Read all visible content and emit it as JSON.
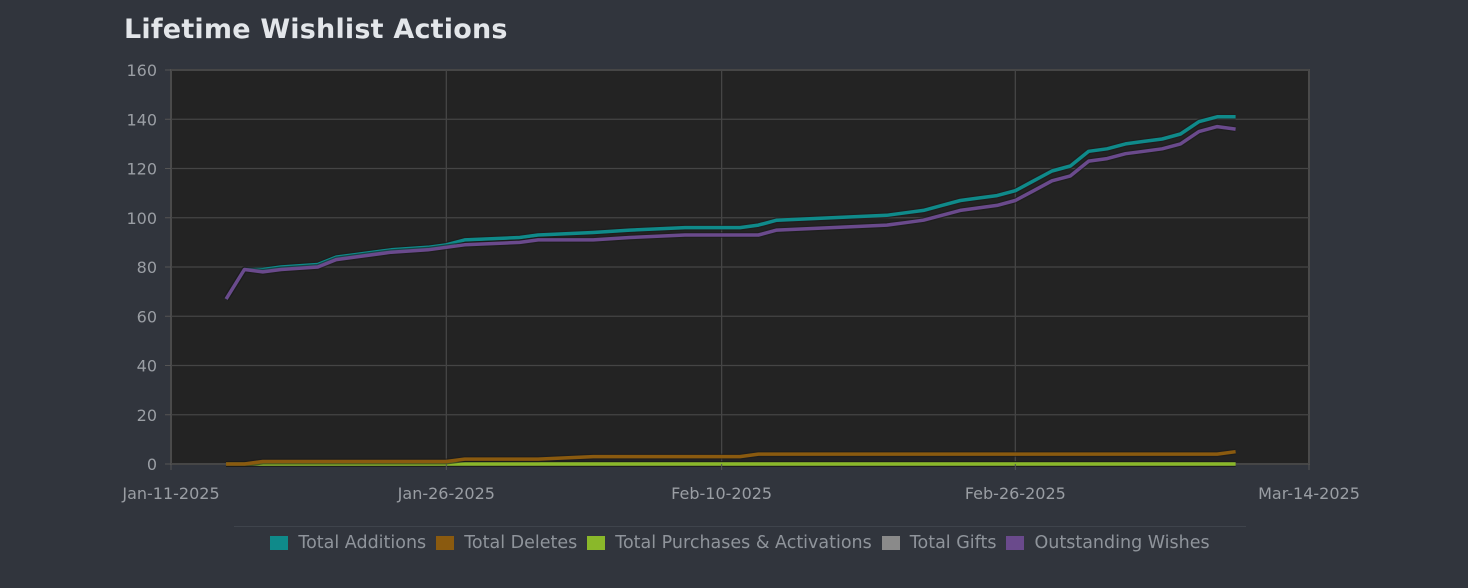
{
  "title": "Lifetime Wishlist Actions",
  "colors": {
    "background": "#31353d",
    "plot_background": "#232323",
    "grid": "#454545",
    "additions": "#0f8a8a",
    "deletes": "#8a5a0f",
    "purchases": "#8ab82a",
    "gifts": "#8a8a8a",
    "outstanding": "#6a4a8c"
  },
  "legend": [
    {
      "label": "Total Additions",
      "color": "#0f8a8a"
    },
    {
      "label": "Total Deletes",
      "color": "#8a5a0f"
    },
    {
      "label": "Total Purchases & Activations",
      "color": "#8ab82a"
    },
    {
      "label": "Total Gifts",
      "color": "#8a8a8a"
    },
    {
      "label": "Outstanding Wishes",
      "color": "#6a4a8c"
    }
  ],
  "chart_data": {
    "type": "line",
    "title": "Lifetime Wishlist Actions",
    "xlabel": "",
    "ylabel": "",
    "ylim": [
      0,
      160
    ],
    "yticks": [
      0,
      20,
      40,
      60,
      80,
      100,
      120,
      140,
      160
    ],
    "xlim": [
      "2025-01-11",
      "2025-03-14"
    ],
    "xticks": [
      "Jan-11-2025",
      "Jan-26-2025",
      "Feb-10-2025",
      "Feb-26-2025",
      "Mar-14-2025"
    ],
    "xtick_dates": [
      "2025-01-11",
      "2025-01-26",
      "2025-02-10",
      "2025-02-26",
      "2025-03-14"
    ],
    "grid": true,
    "legend_position": "bottom",
    "x": [
      "2025-01-14",
      "2025-01-15",
      "2025-01-16",
      "2025-01-17",
      "2025-01-19",
      "2025-01-20",
      "2025-01-21",
      "2025-01-23",
      "2025-01-25",
      "2025-01-26",
      "2025-01-27",
      "2025-01-30",
      "2025-01-31",
      "2025-02-03",
      "2025-02-05",
      "2025-02-08",
      "2025-02-11",
      "2025-02-12",
      "2025-02-13",
      "2025-02-16",
      "2025-02-19",
      "2025-02-20",
      "2025-02-21",
      "2025-02-22",
      "2025-02-23",
      "2025-02-24",
      "2025-02-25",
      "2025-02-26",
      "2025-02-27",
      "2025-02-28",
      "2025-03-01",
      "2025-03-02",
      "2025-03-03",
      "2025-03-04",
      "2025-03-05",
      "2025-03-06",
      "2025-03-07",
      "2025-03-08",
      "2025-03-09",
      "2025-03-10"
    ],
    "series": [
      {
        "name": "Total Additions",
        "color": "#0f8a8a",
        "values": [
          67,
          79,
          79,
          80,
          81,
          84,
          85,
          87,
          88,
          89,
          91,
          92,
          93,
          94,
          95,
          96,
          96,
          97,
          99,
          100,
          101,
          102,
          103,
          105,
          107,
          108,
          109,
          111,
          115,
          119,
          121,
          127,
          128,
          130,
          131,
          132,
          134,
          139,
          141,
          141
        ]
      },
      {
        "name": "Total Deletes",
        "color": "#8a5a0f",
        "values": [
          0,
          0,
          1,
          1,
          1,
          1,
          1,
          1,
          1,
          1,
          2,
          2,
          2,
          3,
          3,
          3,
          3,
          4,
          4,
          4,
          4,
          4,
          4,
          4,
          4,
          4,
          4,
          4,
          4,
          4,
          4,
          4,
          4,
          4,
          4,
          4,
          4,
          4,
          4,
          5
        ]
      },
      {
        "name": "Total Purchases & Activations",
        "color": "#8ab82a",
        "values": [
          0,
          0,
          0,
          0,
          0,
          0,
          0,
          0,
          0,
          0,
          0,
          0,
          0,
          0,
          0,
          0,
          0,
          0,
          0,
          0,
          0,
          0,
          0,
          0,
          0,
          0,
          0,
          0,
          0,
          0,
          0,
          0,
          0,
          0,
          0,
          0,
          0,
          0,
          0,
          0
        ]
      },
      {
        "name": "Total Gifts",
        "color": "#8a8a8a",
        "values": [
          0,
          0,
          0,
          0,
          0,
          0,
          0,
          0,
          0,
          0,
          0,
          0,
          0,
          0,
          0,
          0,
          0,
          0,
          0,
          0,
          0,
          0,
          0,
          0,
          0,
          0,
          0,
          0,
          0,
          0,
          0,
          0,
          0,
          0,
          0,
          0,
          0,
          0,
          0,
          0
        ]
      },
      {
        "name": "Outstanding Wishes",
        "color": "#6a4a8c",
        "values": [
          67,
          79,
          78,
          79,
          80,
          83,
          84,
          86,
          87,
          88,
          89,
          90,
          91,
          91,
          92,
          93,
          93,
          93,
          95,
          96,
          97,
          98,
          99,
          101,
          103,
          104,
          105,
          107,
          111,
          115,
          117,
          123,
          124,
          126,
          127,
          128,
          130,
          135,
          137,
          136
        ]
      }
    ]
  }
}
